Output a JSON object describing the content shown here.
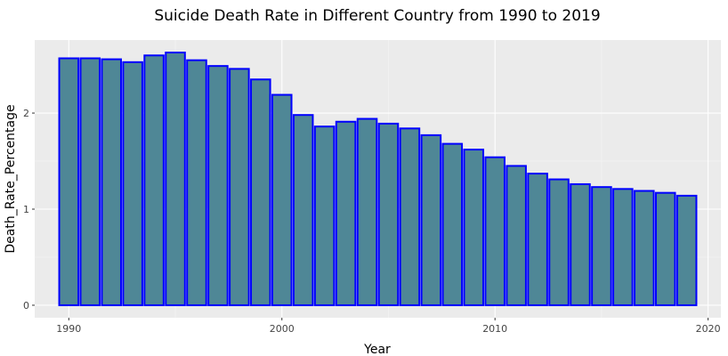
{
  "chart_data": {
    "type": "bar",
    "title": "Suicide Death Rate in Different Country from 1990 to 2019",
    "xlabel": "Year",
    "ylabel": "Death_Rate_Percentage",
    "x": [
      1990,
      1991,
      1992,
      1993,
      1994,
      1995,
      1996,
      1997,
      1998,
      1999,
      2000,
      2001,
      2002,
      2003,
      2004,
      2005,
      2006,
      2007,
      2008,
      2009,
      2010,
      2011,
      2012,
      2013,
      2014,
      2015,
      2016,
      2017,
      2018,
      2019
    ],
    "values": [
      2.57,
      2.57,
      2.56,
      2.53,
      2.6,
      2.63,
      2.55,
      2.49,
      2.46,
      2.35,
      2.19,
      1.98,
      1.86,
      1.91,
      1.94,
      1.89,
      1.84,
      1.77,
      1.68,
      1.62,
      1.54,
      1.45,
      1.37,
      1.31,
      1.26,
      1.23,
      1.21,
      1.19,
      1.17,
      1.14
    ],
    "xlim": [
      1988.4,
      2020.6
    ],
    "ylim": [
      -0.13,
      2.76
    ],
    "xticks": [
      1990,
      2000,
      2010,
      2020
    ],
    "xtick_labels": [
      "1990",
      "2000",
      "2010",
      "2020"
    ],
    "yticks": [
      0,
      1,
      2
    ],
    "ytick_labels": [
      "0",
      "1",
      "2"
    ],
    "bar_fill": "#4f8796",
    "bar_stroke": "#0000ff",
    "panel_bg": "#ebebeb",
    "grid_major": "#ffffff",
    "grid_minor": "#f5f5f5",
    "grid": true,
    "legend": "none"
  }
}
